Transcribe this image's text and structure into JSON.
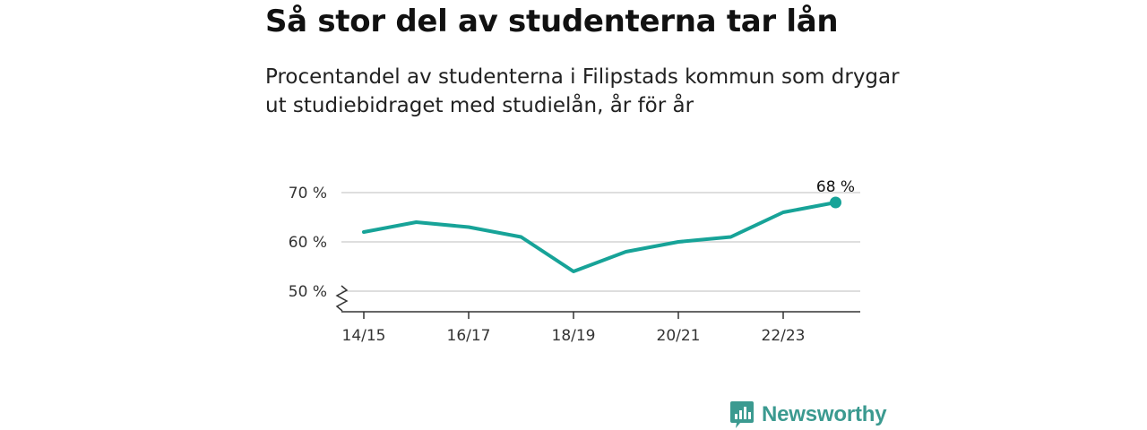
{
  "title": "Så stor del av studenterna tar lån",
  "subtitle": "Procentandel av studenterna i Filipstads kommun som drygar ut studiebidraget med studielån, år för år",
  "brand": {
    "name": "Newsworthy",
    "icon": "newsworthy-logo-icon",
    "color": "#3b9a90"
  },
  "colors": {
    "line": "#17a398",
    "grid": "#d4d4d4",
    "axis": "#333333"
  },
  "chart_data": {
    "type": "line",
    "title": "Så stor del av studenterna tar lån",
    "subtitle": "Procentandel av studenterna i Filipstads kommun som drygar ut studiebidraget med studielån, år för år",
    "x": [
      "14/15",
      "15/16",
      "16/17",
      "17/18",
      "18/19",
      "19/20",
      "20/21",
      "21/22",
      "22/23",
      "23/24"
    ],
    "values": [
      62,
      64,
      63,
      61,
      54,
      58,
      60,
      61,
      66,
      68
    ],
    "x_tick_labels": [
      "14/15",
      "16/17",
      "18/19",
      "20/21",
      "22/23"
    ],
    "y_ticks": [
      50,
      60,
      70
    ],
    "y_tick_labels": [
      "50 %",
      "60 %",
      "70 %"
    ],
    "ylim": [
      46,
      70
    ],
    "y_axis_break": true,
    "grid": true,
    "end_label": "68 %"
  }
}
